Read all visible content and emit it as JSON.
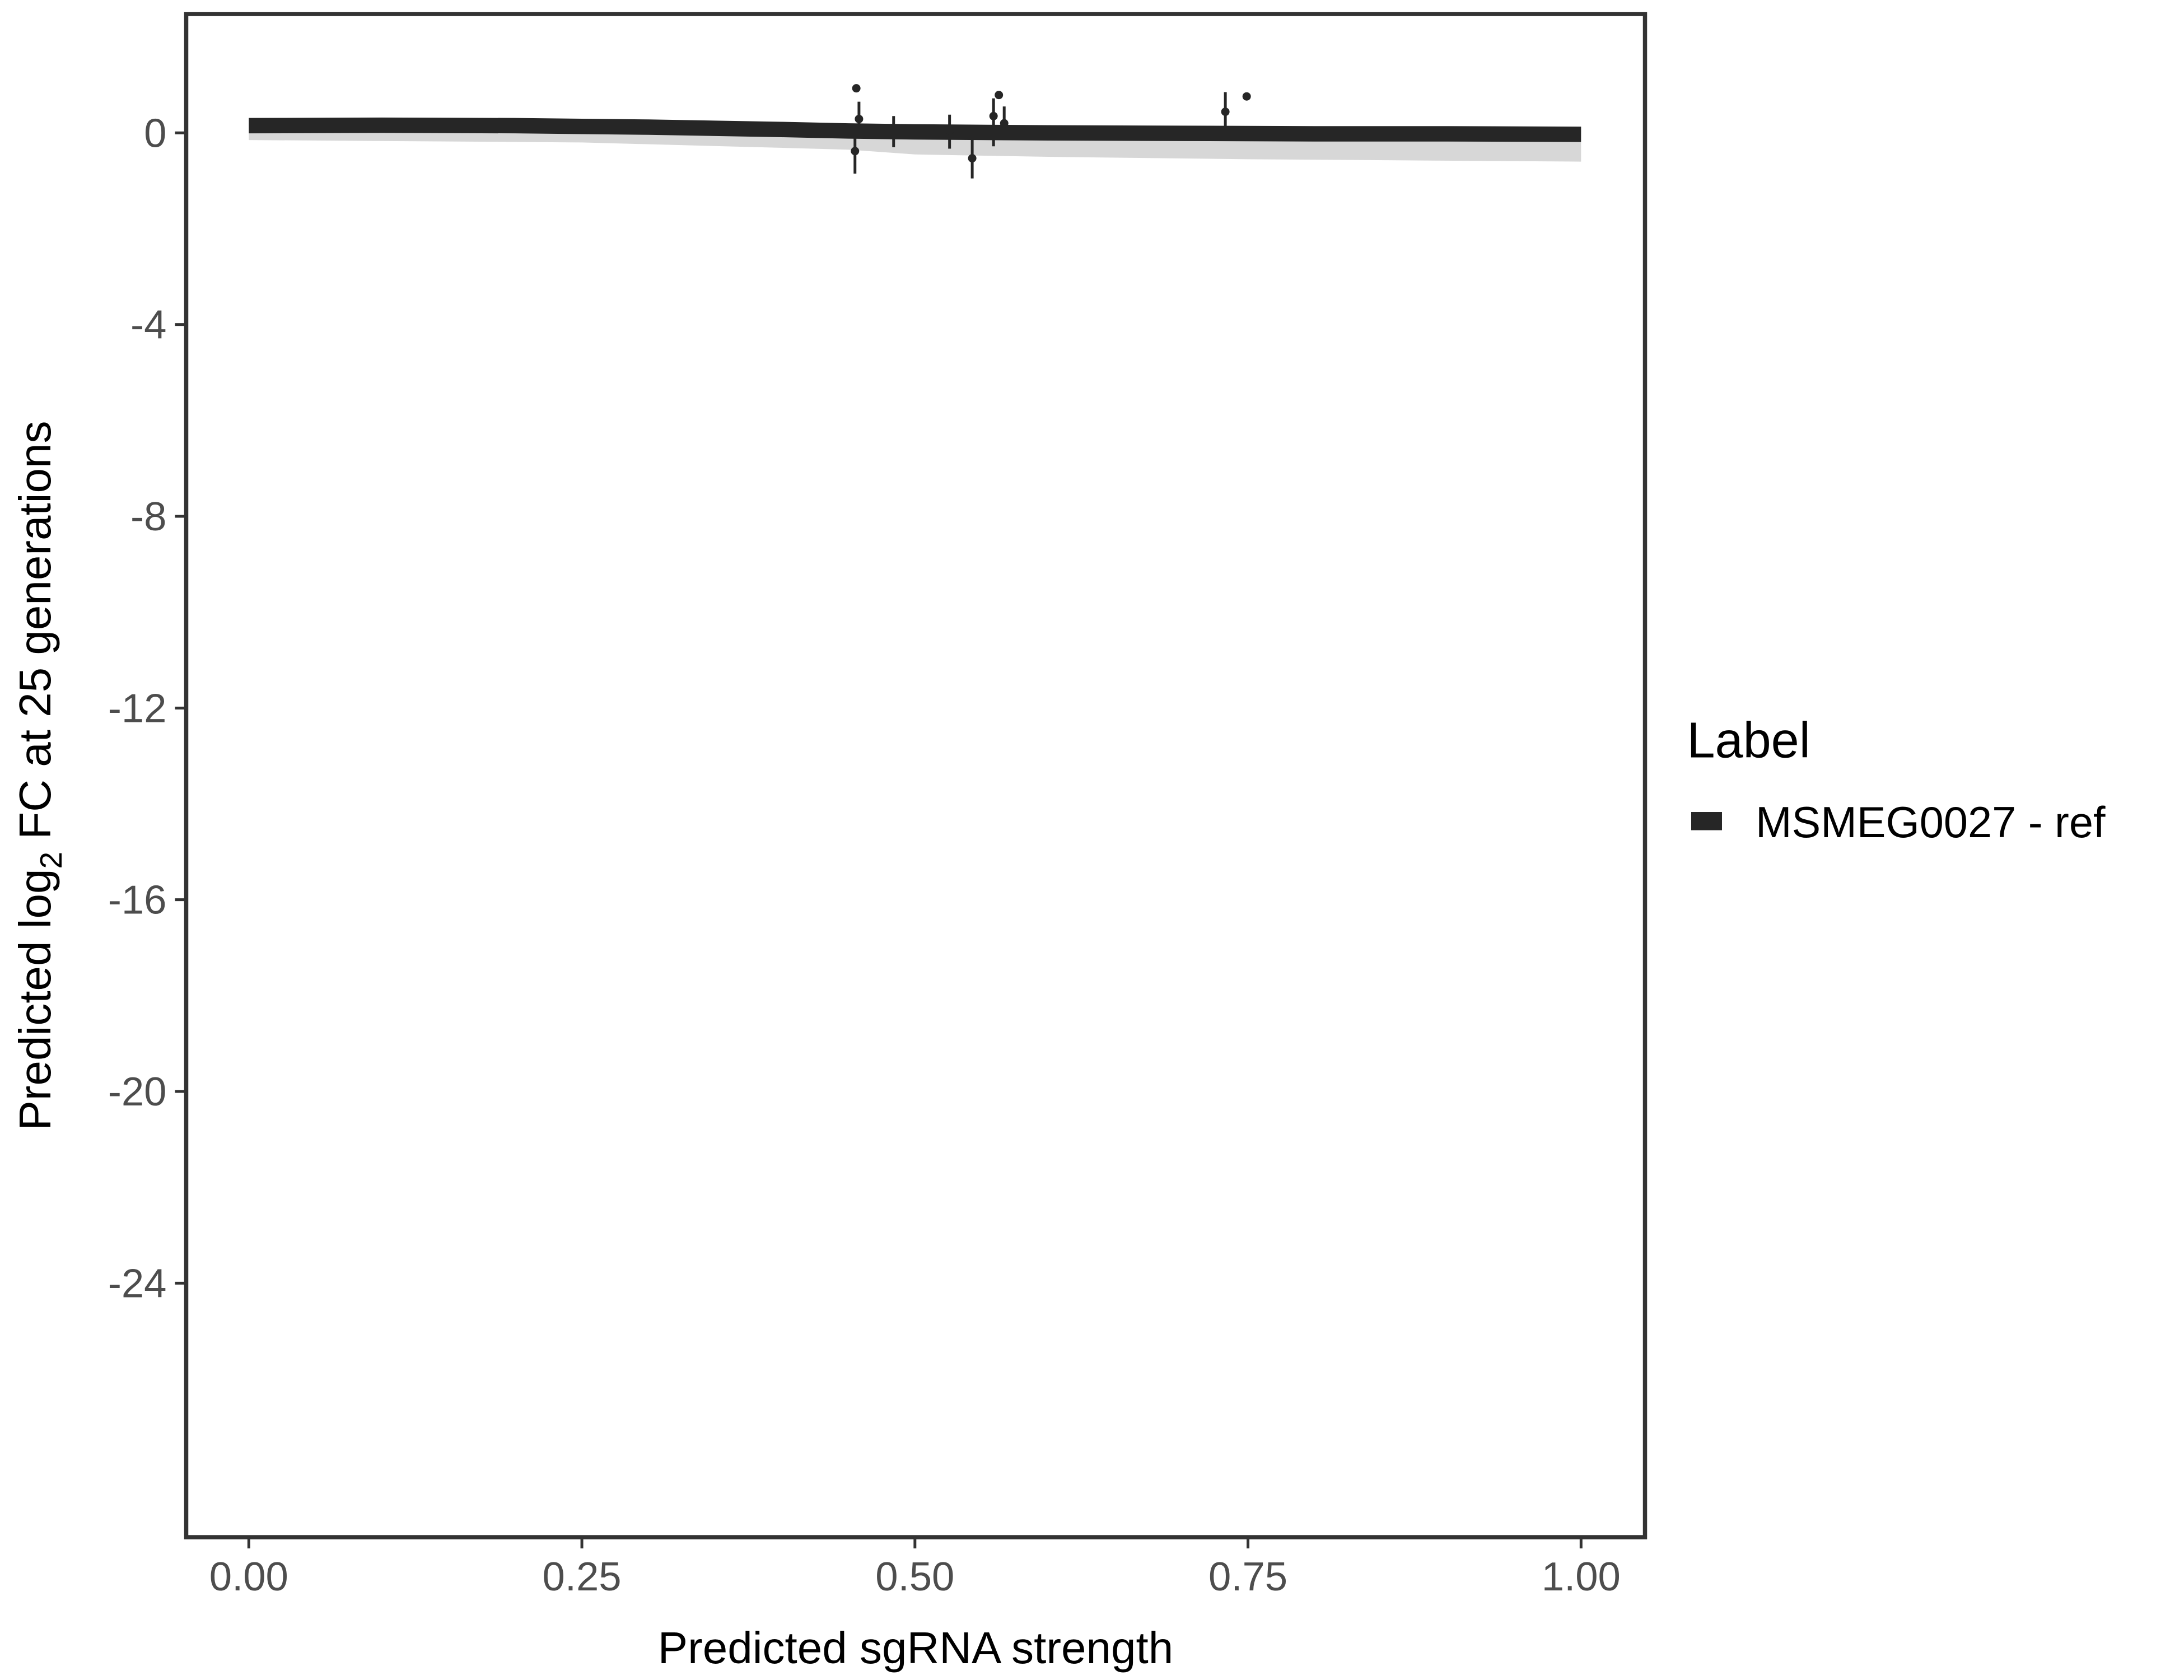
{
  "chart_data": {
    "type": "line",
    "xlabel": "Predicted sgRNA strength",
    "ylabel": {
      "prefix": "Predicted  log",
      "sub": "2",
      "suffix": " FC at 25 generations"
    },
    "xlim": [
      -0.047,
      1.048
    ],
    "ylim": [
      -29.3,
      2.48
    ],
    "x_ticks": [
      0.0,
      0.25,
      0.5,
      0.75,
      1.0
    ],
    "x_tick_labels": [
      "0.00",
      "0.25",
      "0.50",
      "0.75",
      "1.00"
    ],
    "y_ticks": [
      0,
      -4,
      -8,
      -12,
      -16,
      -20,
      -24
    ],
    "y_tick_labels": [
      "0",
      "-4",
      "-8",
      "-12",
      "-16",
      "-20",
      "-24"
    ],
    "grid": false,
    "legend": {
      "title": "Label",
      "placement": "right",
      "entries": [
        {
          "label": "MSMEG0027 - ref",
          "color": "#262626"
        }
      ]
    },
    "fit_line": {
      "name": "MSMEG0027 - ref",
      "color": "#262626",
      "x": [
        0.0,
        0.1,
        0.2,
        0.3,
        0.4,
        0.45,
        0.5,
        0.6,
        0.7,
        0.8,
        0.9,
        1.0
      ],
      "y": [
        0.15,
        0.16,
        0.15,
        0.12,
        0.07,
        0.04,
        0.02,
        0.0,
        -0.01,
        -0.02,
        -0.02,
        -0.03
      ]
    },
    "ribbon": {
      "color": "#bdbdbd",
      "x": [
        0.0,
        0.25,
        0.45,
        0.5,
        0.6,
        0.75,
        1.0
      ],
      "lower": [
        -0.15,
        -0.2,
        -0.35,
        -0.45,
        -0.5,
        -0.55,
        -0.6
      ],
      "upper": [
        0.2,
        0.2,
        0.12,
        0.1,
        0.08,
        0.06,
        0.05
      ]
    },
    "points": [
      {
        "x": 0.456,
        "y": 0.93,
        "ymin": null,
        "ymax": null
      },
      {
        "x": 0.458,
        "y": 0.29,
        "ymin": -0.1,
        "ymax": 0.65
      },
      {
        "x": 0.455,
        "y": -0.38,
        "ymin": -0.85,
        "ymax": 0.0
      },
      {
        "x": 0.484,
        "y": 0.1,
        "ymin": -0.3,
        "ymax": 0.35
      },
      {
        "x": 0.526,
        "y": 0.05,
        "ymin": -0.33,
        "ymax": 0.38
      },
      {
        "x": 0.543,
        "y": -0.53,
        "ymin": -0.95,
        "ymax": -0.1
      },
      {
        "x": 0.559,
        "y": 0.35,
        "ymin": -0.28,
        "ymax": 0.72
      },
      {
        "x": 0.563,
        "y": 0.79,
        "ymin": null,
        "ymax": null
      },
      {
        "x": 0.567,
        "y": 0.2,
        "ymin": -0.15,
        "ymax": 0.55
      },
      {
        "x": 0.733,
        "y": 0.44,
        "ymin": 0.05,
        "ymax": 0.85
      },
      {
        "x": 0.749,
        "y": 0.76,
        "ymin": null,
        "ymax": null
      }
    ]
  }
}
